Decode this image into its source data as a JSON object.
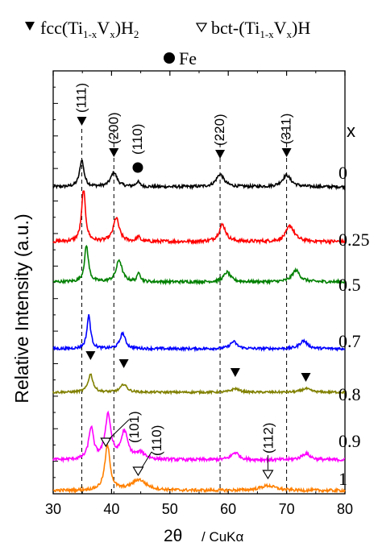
{
  "chart_data": {
    "type": "line",
    "title": "",
    "xlabel": "2θ",
    "xlabel_suffix": "/ CuKα",
    "ylabel": "Relative Intensity (a.u.)",
    "xlim": [
      30,
      80
    ],
    "x_ticks": [
      30,
      40,
      50,
      60,
      70,
      80
    ],
    "x_tick_labels": [
      "30",
      "40",
      "50",
      "60",
      "70",
      "80"
    ],
    "y_ticks": "none",
    "grid": false,
    "legend": {
      "placement": "top",
      "entries": [
        {
          "marker": "filled-down-triangle",
          "text_main": "fcc(Ti",
          "sub1": "1-x",
          "mid": "V",
          "sub2": "x",
          "text_end": ")H",
          "sub3": "2"
        },
        {
          "marker": "open-down-triangle",
          "text_main": "bct-(Ti",
          "sub1": "1-x",
          "mid": "V",
          "sub2": "x",
          "text_end": ")H",
          "sub3": ""
        },
        {
          "marker": "filled-circle",
          "text_main": "Fe",
          "sub1": "",
          "mid": "",
          "sub2": "",
          "text_end": "",
          "sub3": ""
        }
      ]
    },
    "series_header": "x",
    "series": [
      {
        "name": "0",
        "color": "#000000",
        "baseline": 0.0,
        "peaks": [
          [
            34.9,
            0.55,
            0.45
          ],
          [
            40.4,
            0.3,
            0.65
          ],
          [
            44.5,
            0.1,
            0.4
          ],
          [
            58.6,
            0.26,
            0.8
          ],
          [
            70.0,
            0.24,
            0.9
          ]
        ]
      },
      {
        "name": "0.25",
        "color": "#ff0000",
        "baseline": 0.0,
        "peaks": [
          [
            35.2,
            0.92,
            0.4
          ],
          [
            40.8,
            0.42,
            0.6
          ],
          [
            44.6,
            0.08,
            0.35
          ],
          [
            59.0,
            0.3,
            0.7
          ],
          [
            70.6,
            0.28,
            0.85
          ]
        ]
      },
      {
        "name": "0.5",
        "color": "#008000",
        "baseline": 0.0,
        "peaks": [
          [
            35.7,
            0.75,
            0.4
          ],
          [
            41.3,
            0.45,
            0.6
          ],
          [
            44.7,
            0.2,
            0.3
          ],
          [
            59.8,
            0.2,
            0.7
          ],
          [
            71.6,
            0.24,
            0.8
          ]
        ]
      },
      {
        "name": "0.7",
        "color": "#0000ff",
        "baseline": 0.0,
        "peaks": [
          [
            36.1,
            0.75,
            0.38
          ],
          [
            41.9,
            0.35,
            0.55
          ],
          [
            60.9,
            0.16,
            0.7
          ],
          [
            72.9,
            0.18,
            0.8
          ]
        ]
      },
      {
        "name": "0.8",
        "color": "#808000",
        "baseline": 0.0,
        "peaks": [
          [
            36.4,
            0.5,
            0.5
          ],
          [
            42.1,
            0.22,
            0.65
          ],
          [
            61.2,
            0.1,
            0.8
          ],
          [
            73.3,
            0.1,
            0.9
          ]
        ]
      },
      {
        "name": "0.9",
        "color": "#ff00ff",
        "baseline": 0.0,
        "peaks": [
          [
            36.5,
            0.6,
            0.5
          ],
          [
            39.4,
            0.85,
            0.6
          ],
          [
            42.2,
            0.52,
            0.7
          ],
          [
            45.0,
            0.12,
            1.0
          ],
          [
            61.2,
            0.14,
            0.8
          ],
          [
            73.3,
            0.12,
            0.9
          ]
        ]
      },
      {
        "name": "1",
        "color": "#ff8000",
        "baseline": 0.0,
        "peaks": [
          [
            39.3,
            0.92,
            0.55
          ],
          [
            44.7,
            0.22,
            1.5
          ],
          [
            66.8,
            0.1,
            1.6
          ]
        ]
      }
    ],
    "annotations": {
      "fcc_labels": [
        {
          "text": "(111)",
          "x": 34.9
        },
        {
          "text": "(200)",
          "x": 40.4
        },
        {
          "text": "(220)",
          "x": 58.6
        },
        {
          "text": "(311)",
          "x": 70.0
        }
      ],
      "fe_label": {
        "text": "(110)",
        "x": 44.5
      },
      "bct_labels": [
        {
          "text": "(101)",
          "x": 39.3
        },
        {
          "text": "(110)",
          "x": 44.7
        },
        {
          "text": "(112)",
          "x": 66.8
        }
      ],
      "reference_lines_x": [
        34.9,
        40.4,
        58.6,
        70.0
      ]
    }
  }
}
